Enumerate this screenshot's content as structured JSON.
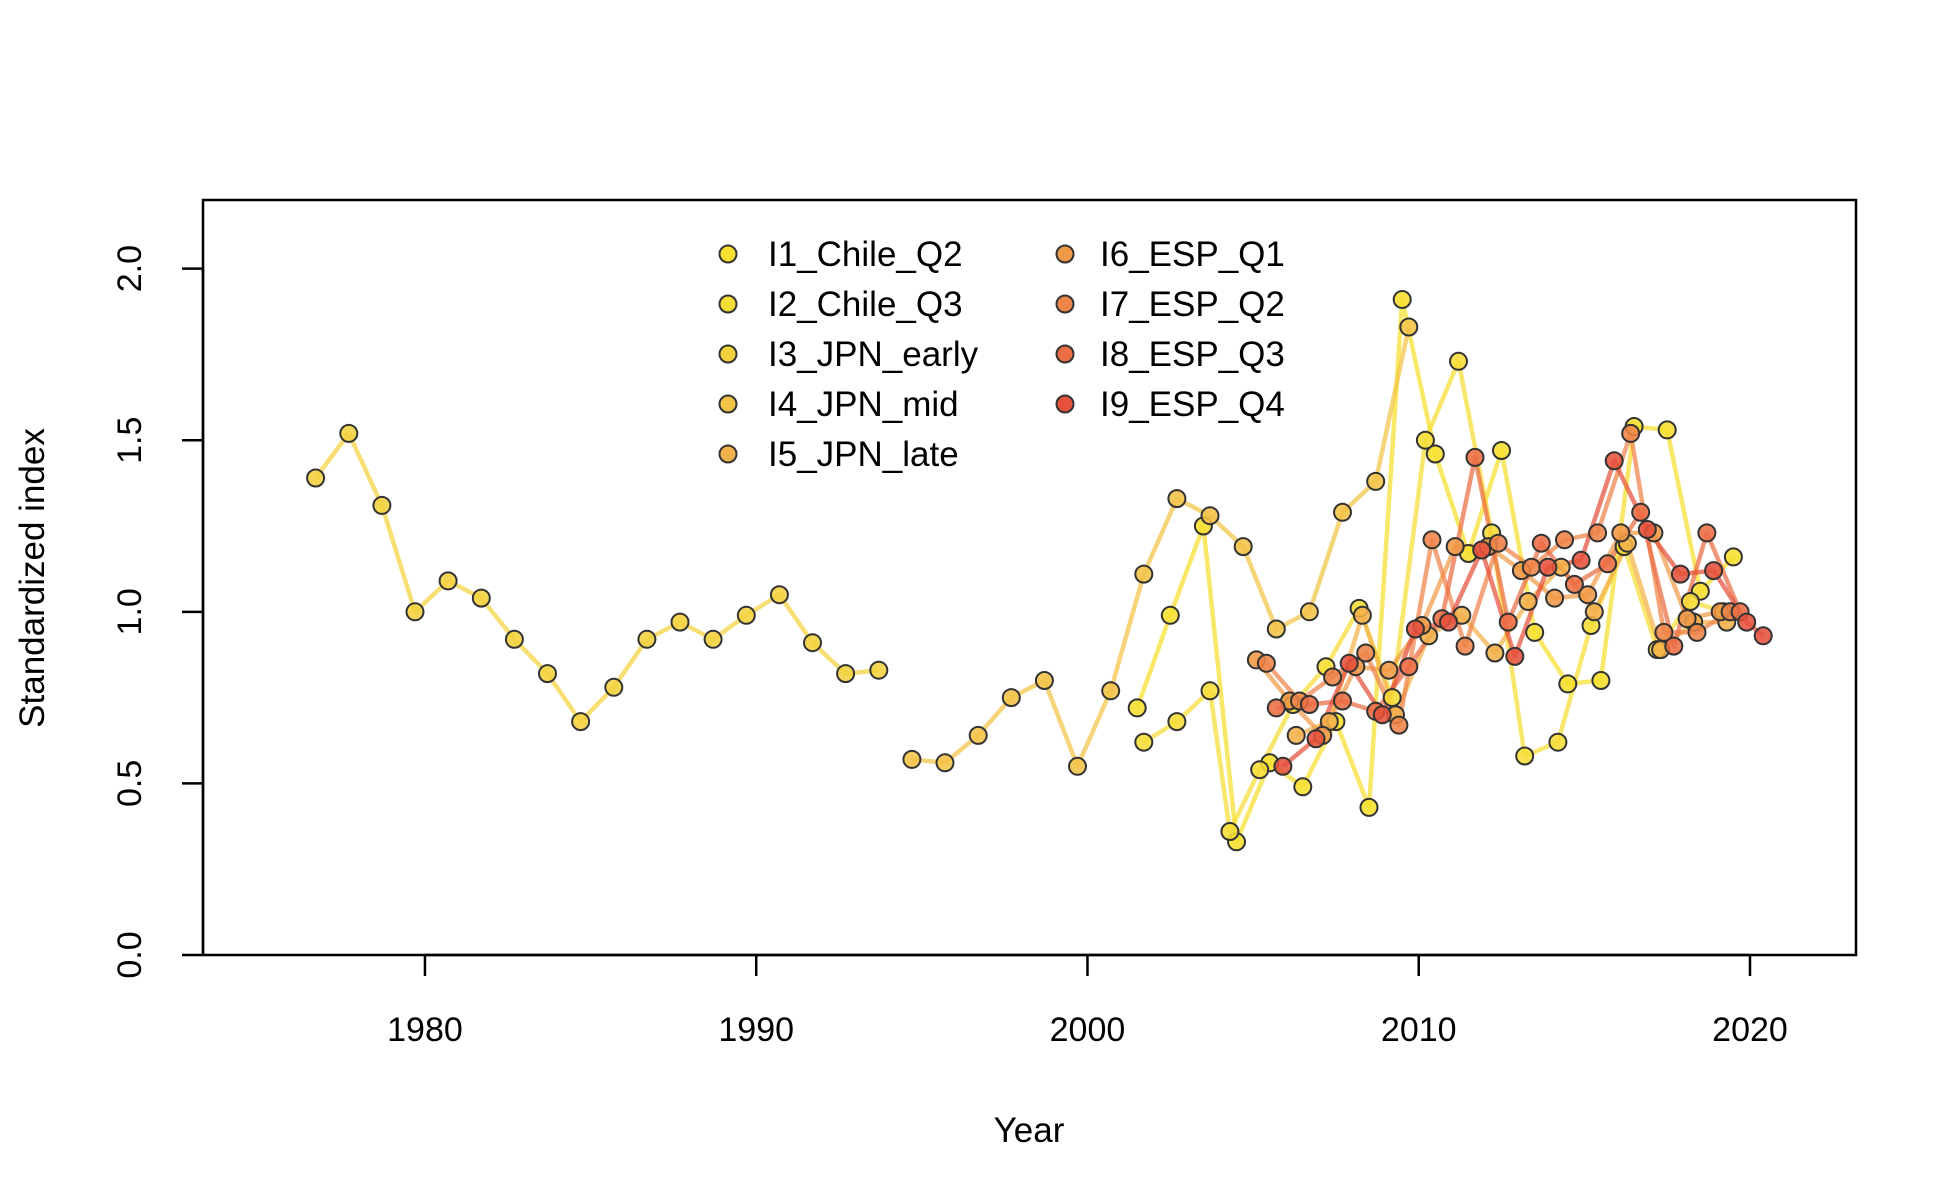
{
  "chart_data": {
    "type": "line",
    "xlabel": "Year",
    "ylabel": "Standardized index",
    "xlim": [
      1973.3,
      2023.2
    ],
    "ylim": [
      0,
      2.2
    ],
    "xticks": [
      1980,
      1990,
      2000,
      2010,
      2020
    ],
    "yticks": [
      0.0,
      0.5,
      1.0,
      1.5,
      2.0
    ],
    "ytick_labels": [
      "0.0",
      "0.5",
      "1.0",
      "1.5",
      "2.0"
    ],
    "legend_position": "top-center",
    "grid": false,
    "series": [
      {
        "name": "I1_Chile_Q2",
        "color": "#F7DF2E",
        "x": [
          2001.5,
          2002.5,
          2003.5,
          2004.5,
          2005.5,
          2006.5,
          2007.5,
          2008.5,
          2009.5,
          2010.5,
          2011.5,
          2012.5,
          2013.5,
          2014.5,
          2015.5,
          2016.5,
          2017.5,
          2018.5,
          2019.5
        ],
        "y": [
          0.72,
          0.99,
          1.25,
          0.33,
          0.56,
          0.49,
          0.68,
          0.43,
          1.91,
          1.46,
          1.17,
          1.47,
          0.94,
          0.79,
          0.8,
          1.54,
          1.53,
          1.06,
          1.16
        ]
      },
      {
        "name": "I2_Chile_Q3",
        "color": "#F7DD35",
        "x": [
          2001.7,
          2002.7,
          2003.7,
          2004.3,
          2005.2,
          2006.2,
          2007.2,
          2008.2,
          2009.2,
          2010.2,
          2011.2,
          2012.2,
          2013.2,
          2014.2,
          2015.2,
          2016.2,
          2017.2,
          2018.2,
          2019.2
        ],
        "y": [
          0.62,
          0.68,
          0.77,
          0.36,
          0.54,
          0.73,
          0.84,
          1.01,
          0.75,
          1.5,
          1.73,
          1.23,
          0.58,
          0.62,
          0.96,
          1.19,
          0.89,
          1.03,
          1.0
        ]
      },
      {
        "name": "I3_JPN_early",
        "color": "#F4D23E",
        "x": [
          1976.7,
          1977.7,
          1978.7,
          1979.7,
          1980.7,
          1981.7,
          1982.7,
          1983.7,
          1984.7,
          1985.7,
          1986.7,
          1987.7,
          1988.7,
          1989.7,
          1990.7,
          1991.7,
          1992.7,
          1993.7
        ],
        "y": [
          1.39,
          1.52,
          1.31,
          1.0,
          1.09,
          1.04,
          0.92,
          0.82,
          0.68,
          0.78,
          0.92,
          0.97,
          0.92,
          0.99,
          1.05,
          0.91,
          0.82,
          0.83
        ]
      },
      {
        "name": "I4_JPN_mid",
        "color": "#F3C347",
        "x": [
          1994.7,
          1995.7,
          1996.7,
          1997.7,
          1998.7,
          1999.7,
          2000.7,
          2001.7,
          2002.7,
          2003.7,
          2004.7,
          2005.7,
          2006.7,
          2007.7,
          2008.7,
          2009.7
        ],
        "y": [
          0.57,
          0.56,
          0.64,
          0.75,
          0.8,
          0.55,
          0.77,
          1.11,
          1.33,
          1.28,
          1.19,
          0.95,
          1.0,
          1.29,
          1.38,
          1.83
        ]
      },
      {
        "name": "I5_JPN_late",
        "color": "#F2B14A",
        "x": [
          2006.3,
          2007.3,
          2008.3,
          2009.3,
          2010.3,
          2011.3,
          2012.3,
          2013.3,
          2014.3,
          2015.3,
          2016.3,
          2017.3,
          2018.3,
          2019.3
        ],
        "y": [
          0.64,
          0.68,
          0.99,
          0.7,
          0.93,
          0.99,
          0.88,
          1.03,
          1.13,
          1.0,
          1.2,
          0.89,
          0.97,
          0.97
        ]
      },
      {
        "name": "I6_ESP_Q1",
        "color": "#F09A47",
        "x": [
          2005.1,
          2006.1,
          2007.1,
          2008.1,
          2009.1,
          2010.1,
          2011.1,
          2012.1,
          2013.1,
          2014.1,
          2015.1,
          2016.1,
          2017.1,
          2018.1,
          2019.1
        ],
        "y": [
          0.86,
          0.74,
          0.64,
          0.84,
          0.83,
          0.96,
          1.19,
          1.19,
          1.12,
          1.04,
          1.05,
          1.23,
          1.23,
          0.98,
          1.0
        ]
      },
      {
        "name": "I7_ESP_Q2",
        "color": "#EE8449",
        "x": [
          2005.4,
          2006.4,
          2007.4,
          2008.4,
          2009.4,
          2010.4,
          2011.4,
          2012.4,
          2013.4,
          2014.4,
          2015.4,
          2016.4,
          2017.4,
          2018.4,
          2019.4
        ],
        "y": [
          0.85,
          0.74,
          0.81,
          0.88,
          0.67,
          1.21,
          0.9,
          1.2,
          1.13,
          1.21,
          1.23,
          1.52,
          0.94,
          0.94,
          1.0
        ]
      },
      {
        "name": "I8_ESP_Q3",
        "color": "#EA6D44",
        "x": [
          2005.7,
          2006.7,
          2007.7,
          2008.7,
          2009.7,
          2010.7,
          2011.7,
          2012.7,
          2013.7,
          2014.7,
          2015.7,
          2016.7,
          2017.7,
          2018.7,
          2019.7
        ],
        "y": [
          0.72,
          0.73,
          0.74,
          0.71,
          0.84,
          0.98,
          1.45,
          0.97,
          1.2,
          1.08,
          1.14,
          1.29,
          0.9,
          1.23,
          1.0
        ]
      },
      {
        "name": "I9_ESP_Q4",
        "color": "#E5513B",
        "x": [
          2005.9,
          2006.9,
          2007.9,
          2008.9,
          2009.9,
          2010.9,
          2011.9,
          2012.9,
          2013.9,
          2014.9,
          2015.9,
          2016.9,
          2017.9,
          2018.9,
          2019.9,
          2020.4
        ],
        "y": [
          0.55,
          0.63,
          0.85,
          0.7,
          0.95,
          0.97,
          1.18,
          0.87,
          1.13,
          1.15,
          1.44,
          1.24,
          1.11,
          1.12,
          0.97,
          0.93
        ]
      }
    ]
  }
}
